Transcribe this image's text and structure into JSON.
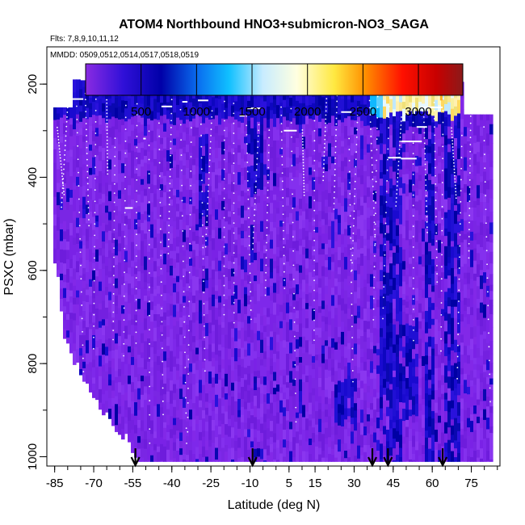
{
  "chart_data": {
    "type": "heatmap",
    "title": "ATOM4 Northbound HNO3+submicron-NO3_SAGA",
    "flights_label": "Flts: 7,8,9,10,11,12",
    "dates_label": "MMDD: 0509,0512,0514,0517,0518,0519",
    "xlabel": "Latitude (deg N)",
    "ylabel": "PSXC (mbar)",
    "xlim": [
      -88,
      86
    ],
    "ylim": [
      1020,
      120
    ],
    "x_ticks": [
      -85,
      -70,
      -55,
      -40,
      -25,
      -10,
      5,
      15,
      30,
      45,
      60,
      75
    ],
    "x_tick_labels": [
      "-85",
      "-70",
      "-55",
      "-40",
      "-25",
      "-10",
      "5",
      "15",
      "30",
      "45",
      "60",
      "75"
    ],
    "y_ticks": [
      200,
      400,
      600,
      800,
      1000
    ],
    "y_tick_labels": [
      "200",
      "400",
      "600",
      "800",
      "1000"
    ],
    "colorbar": {
      "min": 0,
      "max": 3400,
      "ticks": [
        500,
        1000,
        1500,
        2000,
        2500,
        3000
      ],
      "tick_labels": [
        "500",
        "1000",
        "1500",
        "2000",
        "2500",
        "3000"
      ]
    },
    "flight_change_arrows_lat": [
      -54,
      -9,
      37,
      43,
      64
    ],
    "colors": {
      "low": "#7b22e8",
      "mid_blue": "#0a0ab4",
      "high": "#f5eea0"
    }
  }
}
